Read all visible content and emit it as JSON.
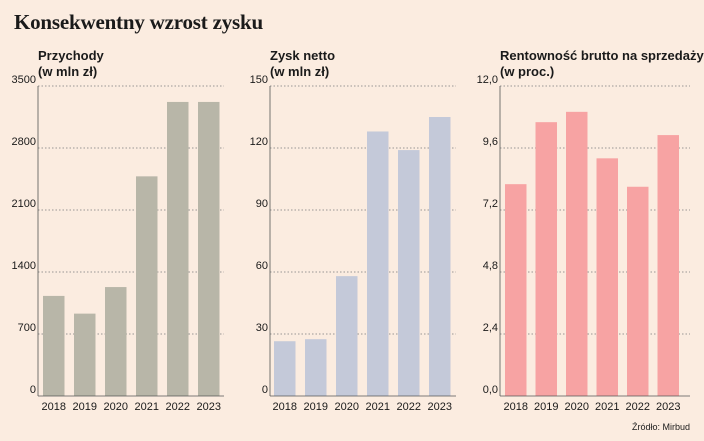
{
  "title": "Konsekwentny wzrost zysku",
  "source": "Źródło: Mirbud",
  "chart_data": [
    {
      "type": "bar",
      "title_line1": "Przychody",
      "title_line2": "(w mln zł)",
      "categories": [
        "2018",
        "2019",
        "2020",
        "2021",
        "2022",
        "2023"
      ],
      "values": [
        1130,
        930,
        1230,
        2480,
        3320,
        3320
      ],
      "ylim": [
        0,
        3500
      ],
      "yticks": [
        0,
        700,
        1400,
        2100,
        2800,
        3500
      ],
      "ytick_labels": [
        "0",
        "700",
        "1400",
        "2100",
        "2800",
        "3500"
      ],
      "color": "#b8b6a8",
      "grid": true
    },
    {
      "type": "bar",
      "title_line1": "Zysk netto",
      "title_line2": "(w mln zł)",
      "categories": [
        "2018",
        "2019",
        "2020",
        "2021",
        "2022",
        "2023"
      ],
      "values": [
        26.5,
        27.5,
        58,
        128,
        119,
        135
      ],
      "ylim": [
        0,
        150
      ],
      "yticks": [
        0,
        30,
        60,
        90,
        120,
        150
      ],
      "ytick_labels": [
        "0",
        "30",
        "60",
        "90",
        "120",
        "150"
      ],
      "color": "#c4c9d9",
      "grid": true
    },
    {
      "type": "bar",
      "title_line1": "Rentowność brutto na sprzedaży",
      "title_line2": "(w proc.)",
      "categories": [
        "2018",
        "2019",
        "2020",
        "2021",
        "2022",
        "2023"
      ],
      "values": [
        8.2,
        10.6,
        11.0,
        9.2,
        8.1,
        10.1
      ],
      "ylim": [
        0,
        12
      ],
      "yticks": [
        0,
        2.4,
        4.8,
        7.2,
        9.6,
        12
      ],
      "ytick_labels": [
        "0,0",
        "2,4",
        "4,8",
        "7,2",
        "9,6",
        "12,0"
      ],
      "color": "#f7a3a3",
      "grid": true
    }
  ]
}
